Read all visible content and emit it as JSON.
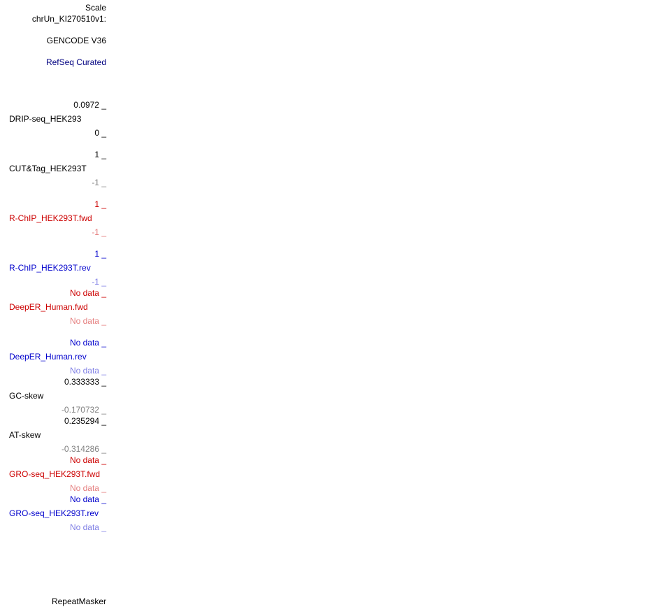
{
  "labels": {
    "scale": "Scale",
    "chrom": "chrUn_KI270510v1:",
    "gencode": "GENCODE V36",
    "refseq": "RefSeq Curated",
    "drip": {
      "name": "DRIP-seq_HEK293",
      "max": "0.0972 _",
      "min": "0 _"
    },
    "cuttag": {
      "name": "CUT&Tag_HEK293T",
      "max": "1 _",
      "min": "-1 _"
    },
    "rchip_fwd": {
      "name": "R-ChIP_HEK293T.fwd",
      "max": "1 _",
      "min": "-1 _"
    },
    "rchip_rev": {
      "name": "R-ChIP_HEK293T.rev",
      "max": "1 _",
      "min": "-1 _"
    },
    "deeper_fwd": {
      "name": "DeepER_Human.fwd",
      "max": "No data _",
      "min": "No data _"
    },
    "deeper_rev": {
      "name": "DeepER_Human.rev",
      "max": "No data _",
      "min": "No data _"
    },
    "gcskew": {
      "name": "GC-skew",
      "max": "0.333333 _",
      "min": "-0.170732 _"
    },
    "atskew": {
      "name": "AT-skew",
      "max": "0.235294 _",
      "min": "-0.314286 _"
    },
    "groseq_fwd": {
      "name": "GRO-seq_HEK293T.fwd",
      "max": "No data _",
      "min": "No data _"
    },
    "groseq_rev": {
      "name": "GRO-seq_HEK293T.rev",
      "max": "No data _",
      "min": "No data _"
    },
    "repeatmasker": "RepeatMasker"
  }
}
